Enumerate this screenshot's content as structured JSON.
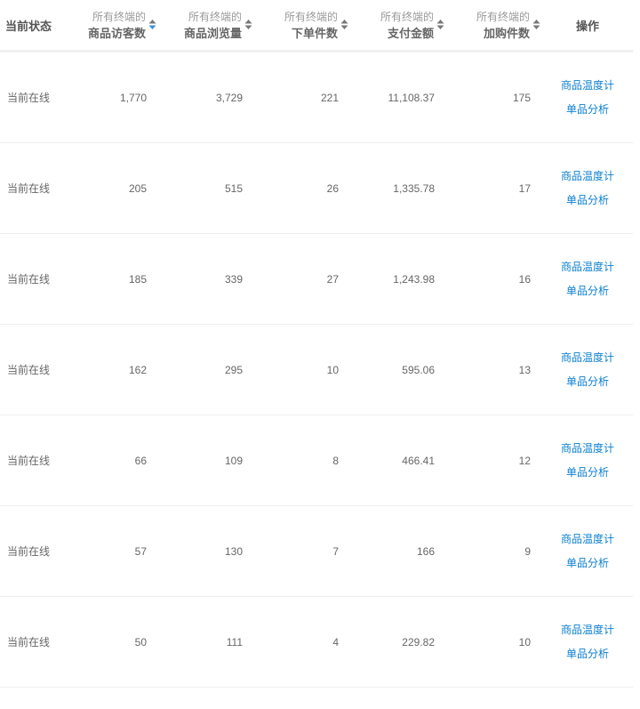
{
  "header": {
    "status": "当前状态",
    "columns": [
      {
        "sub": "所有终端的",
        "main": "商品访客数",
        "sort": "active"
      },
      {
        "sub": "所有终端的",
        "main": "商品浏览量",
        "sort": "none"
      },
      {
        "sub": "所有终端的",
        "main": "下单件数",
        "sort": "none"
      },
      {
        "sub": "所有终端的",
        "main": "支付金额",
        "sort": "none"
      },
      {
        "sub": "所有终端的",
        "main": "加购件数",
        "sort": "none"
      }
    ],
    "actions": "操作"
  },
  "colors": {
    "sort_active": "#3d8fd9",
    "sort_inactive": "#777777",
    "link": "#0a7fd0"
  },
  "rows": [
    {
      "status": "当前在线",
      "values": [
        "1,770",
        "3,729",
        "221",
        "11,108.37",
        "175"
      ],
      "link1": "商品温度计",
      "link2": "单品分析"
    },
    {
      "status": "当前在线",
      "values": [
        "205",
        "515",
        "26",
        "1,335.78",
        "17"
      ],
      "link1": "商品温度计",
      "link2": "单品分析"
    },
    {
      "status": "当前在线",
      "values": [
        "185",
        "339",
        "27",
        "1,243.98",
        "16"
      ],
      "link1": "商品温度计",
      "link2": "单品分析"
    },
    {
      "status": "当前在线",
      "values": [
        "162",
        "295",
        "10",
        "595.06",
        "13"
      ],
      "link1": "商品温度计",
      "link2": "单品分析"
    },
    {
      "status": "当前在线",
      "values": [
        "66",
        "109",
        "8",
        "466.41",
        "12"
      ],
      "link1": "商品温度计",
      "link2": "单品分析"
    },
    {
      "status": "当前在线",
      "values": [
        "57",
        "130",
        "7",
        "166",
        "9"
      ],
      "link1": "商品温度计",
      "link2": "单品分析"
    },
    {
      "status": "当前在线",
      "values": [
        "50",
        "111",
        "4",
        "229.82",
        "10"
      ],
      "link1": "商品温度计",
      "link2": "单品分析"
    }
  ]
}
